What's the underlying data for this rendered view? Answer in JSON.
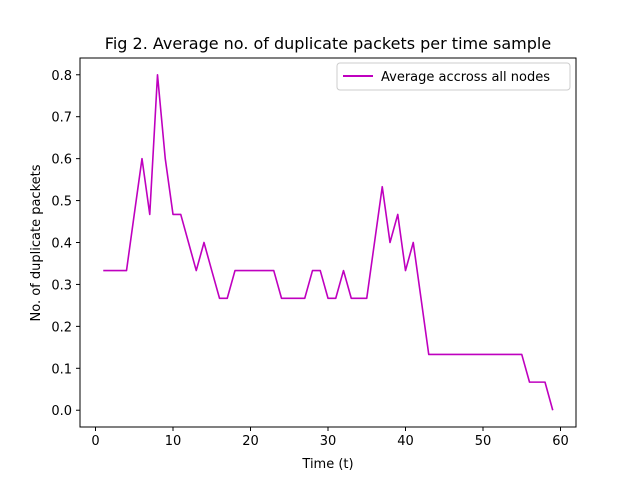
{
  "chart_data": {
    "type": "line",
    "title": "Fig 2. Average no. of duplicate packets per time sample",
    "xlabel": "Time (t)",
    "ylabel": "No. of duplicate packets",
    "xlim": [
      -2,
      62
    ],
    "ylim": [
      -0.04,
      0.84
    ],
    "xticks": [
      0,
      10,
      20,
      30,
      40,
      50,
      60
    ],
    "yticks": [
      0.0,
      0.1,
      0.2,
      0.3,
      0.4,
      0.5,
      0.6,
      0.7,
      0.8
    ],
    "xtick_labels": [
      "0",
      "10",
      "20",
      "30",
      "40",
      "50",
      "60"
    ],
    "ytick_labels": [
      "0.0",
      "0.1",
      "0.2",
      "0.3",
      "0.4",
      "0.5",
      "0.6",
      "0.7",
      "0.8"
    ],
    "grid": false,
    "legend_position": "top-right",
    "series": [
      {
        "name": "Average accross all nodes",
        "color": "#bf00bf",
        "x": [
          1,
          2,
          3,
          4,
          5,
          6,
          7,
          8,
          9,
          10,
          11,
          12,
          13,
          14,
          15,
          16,
          17,
          18,
          19,
          20,
          21,
          22,
          23,
          24,
          25,
          26,
          27,
          28,
          29,
          30,
          31,
          32,
          33,
          34,
          35,
          36,
          37,
          38,
          39,
          40,
          41,
          42,
          43,
          44,
          45,
          46,
          47,
          48,
          49,
          50,
          51,
          52,
          53,
          54,
          55,
          56,
          57,
          58,
          59
        ],
        "y": [
          0.333,
          0.333,
          0.333,
          0.333,
          0.467,
          0.6,
          0.467,
          0.8,
          0.6,
          0.467,
          0.467,
          0.4,
          0.333,
          0.4,
          0.333,
          0.267,
          0.267,
          0.333,
          0.333,
          0.333,
          0.333,
          0.333,
          0.333,
          0.267,
          0.267,
          0.267,
          0.267,
          0.333,
          0.333,
          0.267,
          0.267,
          0.333,
          0.267,
          0.267,
          0.267,
          0.4,
          0.533,
          0.4,
          0.467,
          0.333,
          0.4,
          0.267,
          0.133,
          0.133,
          0.133,
          0.133,
          0.133,
          0.133,
          0.133,
          0.133,
          0.133,
          0.133,
          0.133,
          0.133,
          0.133,
          0.067,
          0.067,
          0.067,
          0.0
        ]
      }
    ]
  }
}
